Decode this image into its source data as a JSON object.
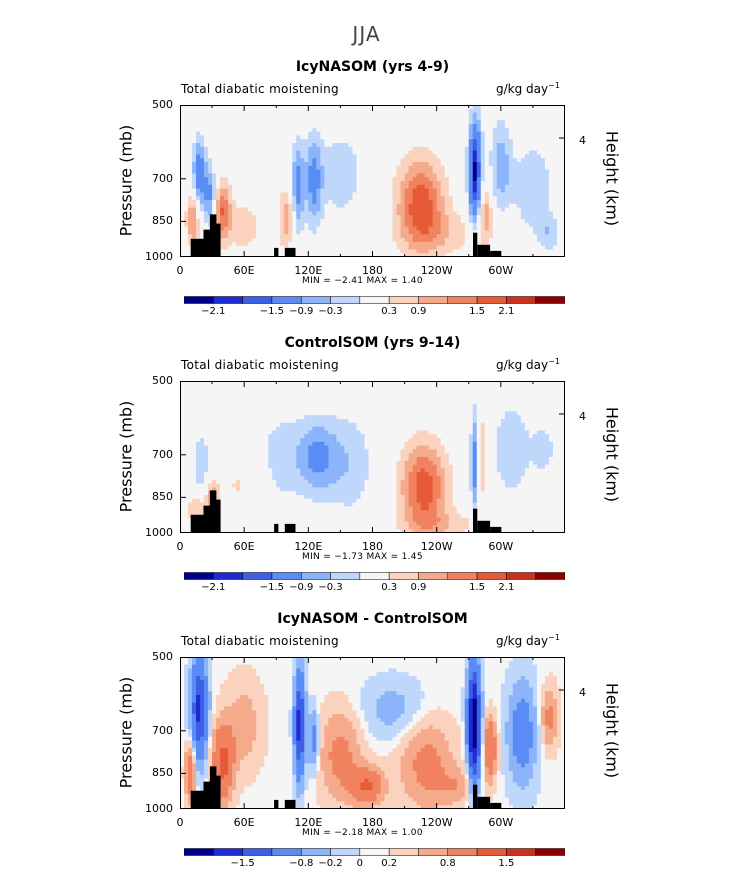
{
  "suptitle": "JJA",
  "colors": {
    "scale": [
      "#00008c",
      "#1e2ad2",
      "#3c5fe6",
      "#5a8cf5",
      "#8cb4fa",
      "#bed7fa",
      "#f5f5f5",
      "#fad2be",
      "#f5aa8c",
      "#f0825f",
      "#e65a37",
      "#c8321e",
      "#8c0000"
    ]
  },
  "chart_data": [
    {
      "type": "heatmap",
      "title": "IcyNASOM (yrs 4-9)",
      "left_label": "Total diabatic moistening",
      "right_label": "g/kg day",
      "right_label_sup": "−1",
      "ylabel": "Pressure (mb)",
      "ylabel_right": "Height (km)",
      "y_ticks": [
        "500",
        "700",
        "850",
        "1000"
      ],
      "y_right_ticks": [
        "4"
      ],
      "x_ticks": [
        "0",
        "60E",
        "120E",
        "180",
        "120W",
        "60W"
      ],
      "min_label": "MIN =",
      "min_value": "−2.41",
      "max_label": "MAX =",
      "max_value": "1.40",
      "colorbar_labels": [
        "−2.1",
        "−1.5",
        "−0.9",
        "−0.3",
        "0.3",
        "0.9",
        "1.5",
        "2.1"
      ]
    },
    {
      "type": "heatmap",
      "title": "ControlSOM (yrs 9-14)",
      "left_label": "Total diabatic moistening",
      "right_label": "g/kg day",
      "right_label_sup": "−1",
      "ylabel": "Pressure (mb)",
      "ylabel_right": "Height (km)",
      "y_ticks": [
        "500",
        "700",
        "850",
        "1000"
      ],
      "y_right_ticks": [
        "4"
      ],
      "x_ticks": [
        "0",
        "60E",
        "120E",
        "180",
        "120W",
        "60W"
      ],
      "min_label": "MIN =",
      "min_value": "−1.73",
      "max_label": "MAX =",
      "max_value": "1.45",
      "colorbar_labels": [
        "−2.1",
        "−1.5",
        "−0.9",
        "−0.3",
        "0.3",
        "0.9",
        "1.5",
        "2.1"
      ]
    },
    {
      "type": "heatmap",
      "title": "IcyNASOM - ControlSOM",
      "left_label": "Total diabatic moistening",
      "right_label": "g/kg day",
      "right_label_sup": "−1",
      "ylabel": "Pressure (mb)",
      "ylabel_right": "Height (km)",
      "y_ticks": [
        "500",
        "700",
        "850",
        "1000"
      ],
      "y_right_ticks": [
        "4"
      ],
      "x_ticks": [
        "0",
        "60E",
        "120E",
        "180",
        "120W",
        "60W"
      ],
      "min_label": "MIN =",
      "min_value": "−2.18",
      "max_label": "MAX =",
      "max_value": "1.00",
      "colorbar_labels": [
        "−1.5",
        "−0.8",
        "−0.2",
        "0",
        "0.2",
        "0.8",
        "1.5"
      ]
    }
  ]
}
